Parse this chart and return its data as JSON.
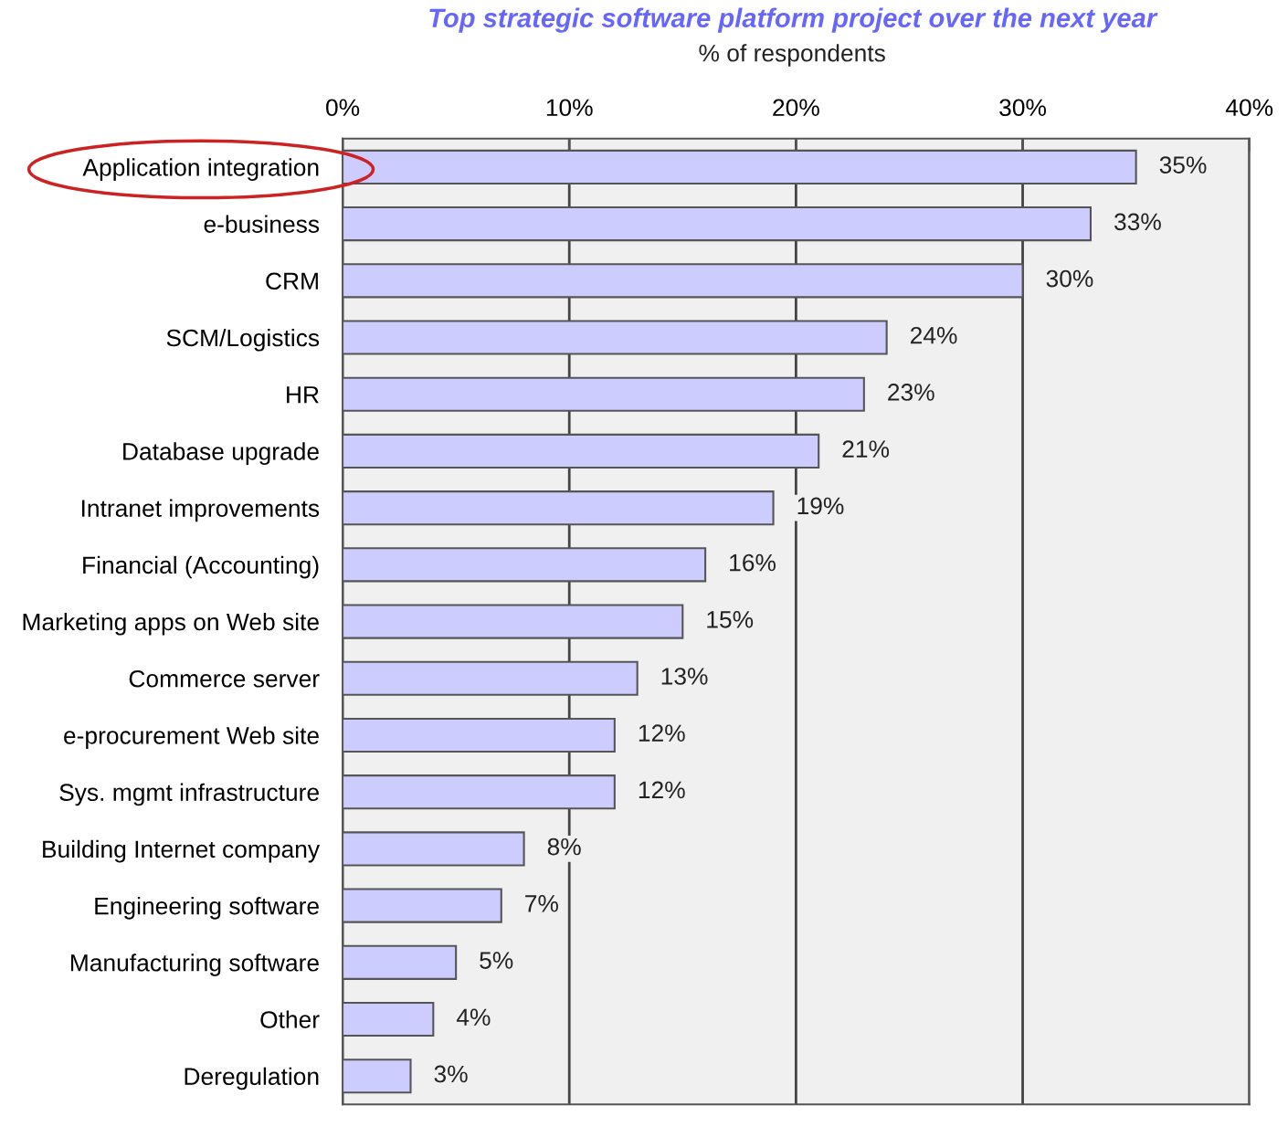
{
  "chart_data": {
    "type": "bar",
    "orientation": "horizontal",
    "title": "Top strategic software platform project over the next year",
    "subtitle": "% of respondents",
    "categories": [
      "Application integration",
      "e-business",
      "CRM",
      "SCM/Logistics",
      "HR",
      "Database upgrade",
      "Intranet improvements",
      "Financial (Accounting)",
      "Marketing apps on Web site",
      "Commerce server",
      "e-procurement Web site",
      "Sys. mgmt infrastructure",
      "Building Internet company",
      "Engineering software",
      "Manufacturing software",
      "Other",
      "Deregulation"
    ],
    "values": [
      35,
      33,
      30,
      24,
      23,
      21,
      19,
      16,
      15,
      13,
      12,
      12,
      8,
      7,
      5,
      4,
      3
    ],
    "value_labels": [
      "35%",
      "33%",
      "30%",
      "24%",
      "23%",
      "21%",
      "19%",
      "16%",
      "15%",
      "13%",
      "12%",
      "12%",
      "8%",
      "7%",
      "5%",
      "4%",
      "3%"
    ],
    "color": "#ccccff",
    "xlim": [
      0,
      40
    ],
    "xticks": [
      {
        "value": 0,
        "label": "0%"
      },
      {
        "value": 10,
        "label": "10%"
      },
      {
        "value": 20,
        "label": "20%"
      },
      {
        "value": 30,
        "label": "30%"
      },
      {
        "value": 40,
        "label": "40%"
      }
    ],
    "grid": "x",
    "legend": false
  }
}
